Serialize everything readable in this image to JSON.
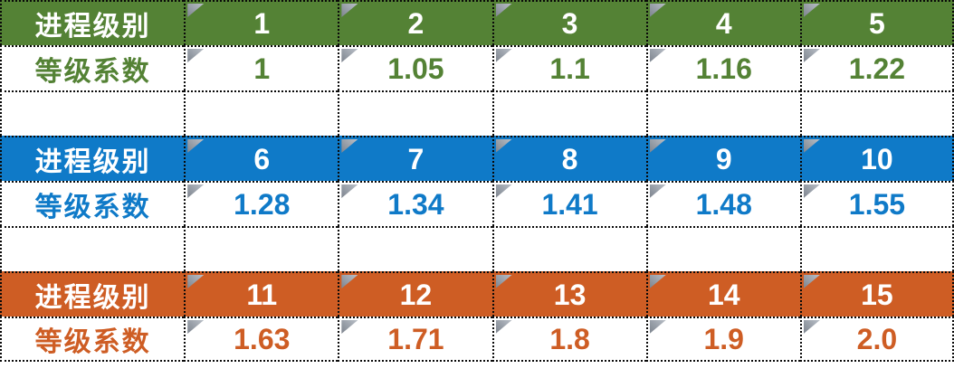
{
  "table": {
    "border_style": "dotted",
    "border_color": "#0A0A0A",
    "icons": {
      "cell_corner_marker": "folded-corner-triangle",
      "cell_corner_marker_color": "#8A919B"
    },
    "sections": [
      {
        "level_label": "进程级别",
        "coef_label": "等级系数",
        "color": "#548235",
        "levels": [
          "1",
          "2",
          "3",
          "4",
          "5"
        ],
        "coefficients": [
          "1",
          "1.05",
          "1.1",
          "1.16",
          "1.22"
        ]
      },
      {
        "level_label": "进程级别",
        "coef_label": "等级系数",
        "color": "#0F7AC8",
        "levels": [
          "6",
          "7",
          "8",
          "9",
          "10"
        ],
        "coefficients": [
          "1.28",
          "1.34",
          "1.41",
          "1.48",
          "1.55"
        ]
      },
      {
        "level_label": "进程级别",
        "coef_label": "等级系数",
        "color": "#CE5D24",
        "levels": [
          "11",
          "12",
          "13",
          "14",
          "15"
        ],
        "coefficients": [
          "1.63",
          "1.71",
          "1.8",
          "1.9",
          "2.0"
        ]
      }
    ]
  }
}
